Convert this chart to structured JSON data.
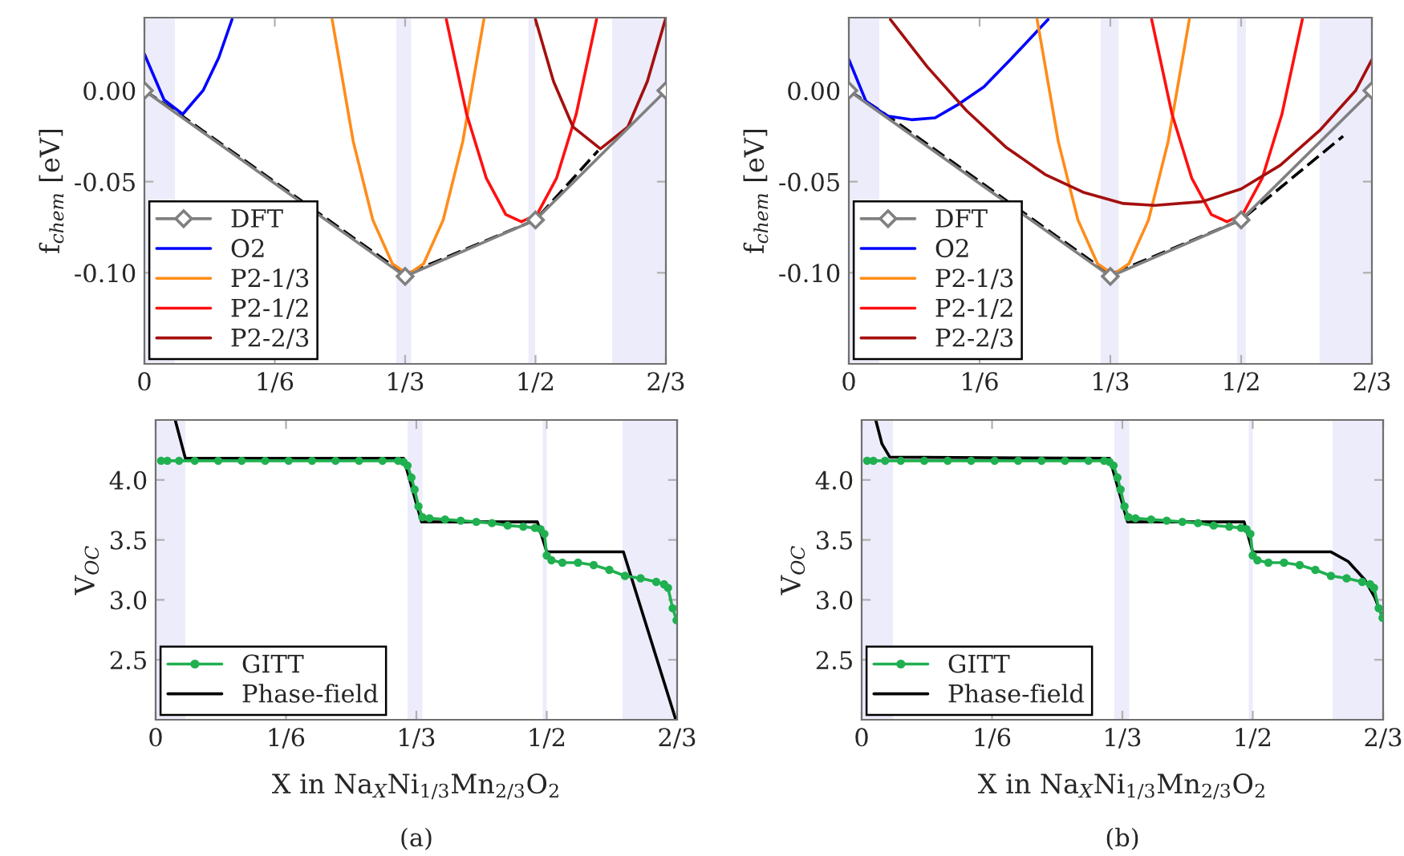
{
  "chart_data": [
    {
      "type": "line",
      "ylabel": "f$_{chem}$ [eV]",
      "xlim": [
        0,
        0.6667
      ],
      "ylim": [
        -0.15,
        0.04
      ],
      "xticks": [
        {
          "value": 0,
          "label": "0"
        },
        {
          "value": 0.1667,
          "label": "1/6"
        },
        {
          "value": 0.3333,
          "label": "1/3"
        },
        {
          "value": 0.5,
          "label": "1/2"
        },
        {
          "value": 0.6667,
          "label": "2/3"
        }
      ],
      "yticks": [
        {
          "value": -0.1,
          "label": "-0.10"
        },
        {
          "value": -0.05,
          "label": "-0.05"
        },
        {
          "value": 0,
          "label": "0.00"
        }
      ],
      "bands": [
        {
          "axis": "x",
          "from": 0,
          "to": 0.039,
          "color": "#ececfa"
        },
        {
          "axis": "x",
          "from": 0.322,
          "to": 0.341,
          "color": "#ececfa"
        },
        {
          "axis": "x",
          "from": 0.491,
          "to": 0.4995,
          "color": "#ececfa"
        },
        {
          "axis": "x",
          "from": 0.598,
          "to": 0.6667,
          "color": "#ececfa"
        }
      ],
      "series": [
        {
          "color": "#000000",
          "line_style": "dashed",
          "x": [
            0,
            0.045,
            0.3333,
            0.5,
            0.58
          ],
          "values": [
            0,
            -0.013,
            -0.101,
            -0.071,
            -0.033
          ]
        },
        {
          "name": "DFT",
          "color": "#808080",
          "marker": "diamond",
          "x": [
            0,
            0.3333,
            0.5,
            0.6667
          ],
          "values": [
            0,
            -0.102,
            -0.071,
            0
          ]
        },
        {
          "name": "O2",
          "color": "#0000ff",
          "x": [
            0,
            0.025,
            0.049,
            0.075,
            0.095,
            0.112
          ],
          "values": [
            0.02,
            -0.005,
            -0.013,
            0.0,
            0.018,
            0.039
          ]
        },
        {
          "name": "P2-1/3",
          "color": "#ff8c1a",
          "x": [
            0.24,
            0.267,
            0.292,
            0.317,
            0.337,
            0.357,
            0.382,
            0.407,
            0.434
          ],
          "values": [
            0.039,
            -0.028,
            -0.071,
            -0.095,
            -0.101,
            -0.095,
            -0.071,
            -0.028,
            0.039
          ]
        },
        {
          "name": "P2-1/2",
          "color": "#ff1010",
          "x": [
            0.386,
            0.412,
            0.437,
            0.462,
            0.482,
            0.502,
            0.527,
            0.552,
            0.578
          ],
          "values": [
            0.039,
            -0.013,
            -0.048,
            -0.068,
            -0.072,
            -0.068,
            -0.048,
            -0.013,
            0.039
          ]
        },
        {
          "name": "P2-2/3",
          "color": "#a50f0f",
          "x": [
            0.5,
            0.523,
            0.548,
            0.583,
            0.618,
            0.643,
            0.666
          ],
          "values": [
            0.039,
            0.005,
            -0.02,
            -0.032,
            -0.02,
            0.005,
            0.039
          ]
        }
      ],
      "legend": "bottom left",
      "grid": false
    },
    {
      "type": "line",
      "ylabel": "f$_{chem}$ [eV]",
      "xlim": [
        0,
        0.6667
      ],
      "ylim": [
        -0.15,
        0.04
      ],
      "xticks": [
        {
          "value": 0,
          "label": "0"
        },
        {
          "value": 0.1667,
          "label": "1/6"
        },
        {
          "value": 0.3333,
          "label": "1/3"
        },
        {
          "value": 0.5,
          "label": "1/2"
        },
        {
          "value": 0.6667,
          "label": "2/3"
        }
      ],
      "yticks": [
        {
          "value": -0.1,
          "label": "-0.10"
        },
        {
          "value": -0.05,
          "label": "-0.05"
        },
        {
          "value": 0,
          "label": "0.00"
        }
      ],
      "bands": [
        {
          "axis": "x",
          "from": 0,
          "to": 0.039,
          "color": "#ececfa"
        },
        {
          "axis": "x",
          "from": 0.321,
          "to": 0.344,
          "color": "#ececfa"
        },
        {
          "axis": "x",
          "from": 0.495,
          "to": 0.506,
          "color": "#ececfa"
        },
        {
          "axis": "x",
          "from": 0.6,
          "to": 0.6667,
          "color": "#ececfa"
        }
      ],
      "series": [
        {
          "color": "#000000",
          "line_style": "dashed",
          "x": [
            0,
            0.04,
            0.3333,
            0.5,
            0.63
          ],
          "values": [
            0,
            -0.011,
            -0.101,
            -0.071,
            -0.025
          ]
        },
        {
          "name": "DFT",
          "color": "#808080",
          "marker": "diamond",
          "x": [
            0,
            0.3333,
            0.5,
            0.6667
          ],
          "values": [
            0,
            -0.102,
            -0.071,
            0
          ]
        },
        {
          "name": "O2",
          "color": "#0000ff",
          "x": [
            0,
            0.022,
            0.049,
            0.08,
            0.11,
            0.138,
            0.172,
            0.206,
            0.254
          ],
          "values": [
            0.017,
            -0.006,
            -0.014,
            -0.016,
            -0.015,
            -0.008,
            0.002,
            0.017,
            0.039
          ]
        },
        {
          "name": "P2-1/3",
          "color": "#ff8c1a",
          "x": [
            0.24,
            0.267,
            0.292,
            0.317,
            0.337,
            0.357,
            0.382,
            0.407,
            0.434
          ],
          "values": [
            0.039,
            -0.028,
            -0.071,
            -0.095,
            -0.101,
            -0.095,
            -0.071,
            -0.028,
            0.039
          ]
        },
        {
          "name": "P2-1/2",
          "color": "#ff1010",
          "x": [
            0.386,
            0.412,
            0.437,
            0.462,
            0.482,
            0.502,
            0.527,
            0.552,
            0.578
          ],
          "values": [
            0.039,
            -0.013,
            -0.048,
            -0.068,
            -0.072,
            -0.068,
            -0.048,
            -0.013,
            0.039
          ]
        },
        {
          "name": "P2-2/3",
          "color": "#a50f0f",
          "x": [
            0.053,
            0.1,
            0.15,
            0.2,
            0.25,
            0.3,
            0.35,
            0.39,
            0.45,
            0.5,
            0.55,
            0.6,
            0.646,
            0.6667
          ],
          "values": [
            0.039,
            0.013,
            -0.011,
            -0.031,
            -0.046,
            -0.056,
            -0.062,
            -0.063,
            -0.061,
            -0.054,
            -0.041,
            -0.022,
            0,
            0.017
          ]
        }
      ],
      "legend": "bottom left",
      "grid": false
    },
    {
      "type": "line",
      "ylabel": "V$_{OC}$",
      "xlabel": "X in Na$_{X}$Ni$_{1/3}$Mn$_{2/3}$O$_{2}$",
      "annotations": [
        "(a)"
      ],
      "xlim": [
        0,
        0.6667
      ],
      "ylim": [
        2.0,
        4.5
      ],
      "xticks": [
        {
          "value": 0,
          "label": "0"
        },
        {
          "value": 0.1667,
          "label": "1/6"
        },
        {
          "value": 0.3333,
          "label": "1/3"
        },
        {
          "value": 0.5,
          "label": "1/2"
        },
        {
          "value": 0.6667,
          "label": "2/3"
        }
      ],
      "yticks": [
        {
          "value": 2.5,
          "label": "2.5"
        },
        {
          "value": 3,
          "label": "3.0"
        },
        {
          "value": 3.5,
          "label": "3.5"
        },
        {
          "value": 4,
          "label": "4.0"
        }
      ],
      "bands": [
        {
          "axis": "x",
          "from": 0,
          "to": 0.038,
          "color": "#ececfa"
        },
        {
          "axis": "x",
          "from": 0.322,
          "to": 0.341,
          "color": "#ececfa"
        },
        {
          "axis": "x",
          "from": 0.495,
          "to": 0.5,
          "color": "#ececfa"
        },
        {
          "axis": "x",
          "from": 0.597,
          "to": 0.6667,
          "color": "#ececfa"
        }
      ],
      "series": [
        {
          "name": "GITT",
          "color": "#20b050",
          "marker": "circle",
          "x": [
            0.007,
            0.015,
            0.03,
            0.05,
            0.08,
            0.11,
            0.14,
            0.17,
            0.2,
            0.23,
            0.26,
            0.29,
            0.31,
            0.317,
            0.322,
            0.327,
            0.331,
            0.336,
            0.341,
            0.35,
            0.37,
            0.39,
            0.41,
            0.43,
            0.45,
            0.47,
            0.485,
            0.492,
            0.497,
            0.5,
            0.506,
            0.52,
            0.54,
            0.56,
            0.58,
            0.6,
            0.62,
            0.64,
            0.65,
            0.655,
            0.661,
            0.666
          ],
          "values": [
            4.16,
            4.16,
            4.16,
            4.16,
            4.16,
            4.16,
            4.16,
            4.16,
            4.16,
            4.16,
            4.16,
            4.16,
            4.16,
            4.15,
            4.12,
            4.02,
            3.92,
            3.78,
            3.69,
            3.68,
            3.67,
            3.66,
            3.65,
            3.64,
            3.62,
            3.61,
            3.6,
            3.59,
            3.55,
            3.37,
            3.33,
            3.31,
            3.31,
            3.29,
            3.25,
            3.2,
            3.18,
            3.15,
            3.13,
            3.1,
            2.93,
            2.83
          ]
        },
        {
          "name": "Phase-field",
          "color": "#000000",
          "x": [
            0.025,
            0.038,
            0.317,
            0.34,
            0.488,
            0.5,
            0.598,
            0.665
          ],
          "values": [
            4.5,
            4.18,
            4.18,
            3.65,
            3.65,
            3.4,
            3.4,
            2.0
          ]
        }
      ],
      "legend": "bottom left",
      "grid": false
    },
    {
      "type": "line",
      "ylabel": "V$_{OC}$",
      "xlabel": "X in Na$_{X}$Ni$_{1/3}$Mn$_{2/3}$O$_{2}$",
      "annotations": [
        "(b)"
      ],
      "xlim": [
        0,
        0.6667
      ],
      "ylim": [
        2.0,
        4.5
      ],
      "xticks": [
        {
          "value": 0,
          "label": "0"
        },
        {
          "value": 0.1667,
          "label": "1/6"
        },
        {
          "value": 0.3333,
          "label": "1/3"
        },
        {
          "value": 0.5,
          "label": "1/2"
        },
        {
          "value": 0.6667,
          "label": "2/3"
        }
      ],
      "yticks": [
        {
          "value": 2.5,
          "label": "2.5"
        },
        {
          "value": 3,
          "label": "3.0"
        },
        {
          "value": 3.5,
          "label": "3.5"
        },
        {
          "value": 4,
          "label": "4.0"
        }
      ],
      "bands": [
        {
          "axis": "x",
          "from": 0,
          "to": 0.04,
          "color": "#ececfa"
        },
        {
          "axis": "x",
          "from": 0.323,
          "to": 0.342,
          "color": "#ececfa"
        },
        {
          "axis": "x",
          "from": 0.495,
          "to": 0.5,
          "color": "#ececfa"
        },
        {
          "axis": "x",
          "from": 0.602,
          "to": 0.6667,
          "color": "#ececfa"
        }
      ],
      "series": [
        {
          "name": "GITT",
          "color": "#20b050",
          "marker": "circle",
          "x": [
            0.007,
            0.015,
            0.03,
            0.05,
            0.08,
            0.11,
            0.14,
            0.17,
            0.2,
            0.23,
            0.26,
            0.29,
            0.31,
            0.317,
            0.322,
            0.327,
            0.331,
            0.336,
            0.341,
            0.35,
            0.37,
            0.39,
            0.41,
            0.43,
            0.45,
            0.47,
            0.485,
            0.492,
            0.497,
            0.5,
            0.506,
            0.52,
            0.54,
            0.56,
            0.58,
            0.6,
            0.62,
            0.64,
            0.65,
            0.655,
            0.661,
            0.666
          ],
          "values": [
            4.16,
            4.16,
            4.16,
            4.16,
            4.16,
            4.16,
            4.16,
            4.16,
            4.16,
            4.16,
            4.16,
            4.16,
            4.16,
            4.15,
            4.12,
            4.02,
            3.92,
            3.78,
            3.69,
            3.68,
            3.67,
            3.66,
            3.65,
            3.64,
            3.62,
            3.61,
            3.6,
            3.59,
            3.55,
            3.37,
            3.33,
            3.31,
            3.31,
            3.29,
            3.25,
            3.2,
            3.18,
            3.15,
            3.13,
            3.1,
            2.93,
            2.85
          ]
        },
        {
          "name": "Phase-field",
          "color": "#000000",
          "x": [
            0.018,
            0.026,
            0.036,
            0.317,
            0.34,
            0.489,
            0.5,
            0.6,
            0.622,
            0.643,
            0.656,
            0.6667
          ],
          "values": [
            4.5,
            4.3,
            4.19,
            4.18,
            3.65,
            3.65,
            3.4,
            3.4,
            3.32,
            3.17,
            3.02,
            2.84
          ]
        }
      ],
      "legend": "bottom left",
      "grid": false
    }
  ]
}
